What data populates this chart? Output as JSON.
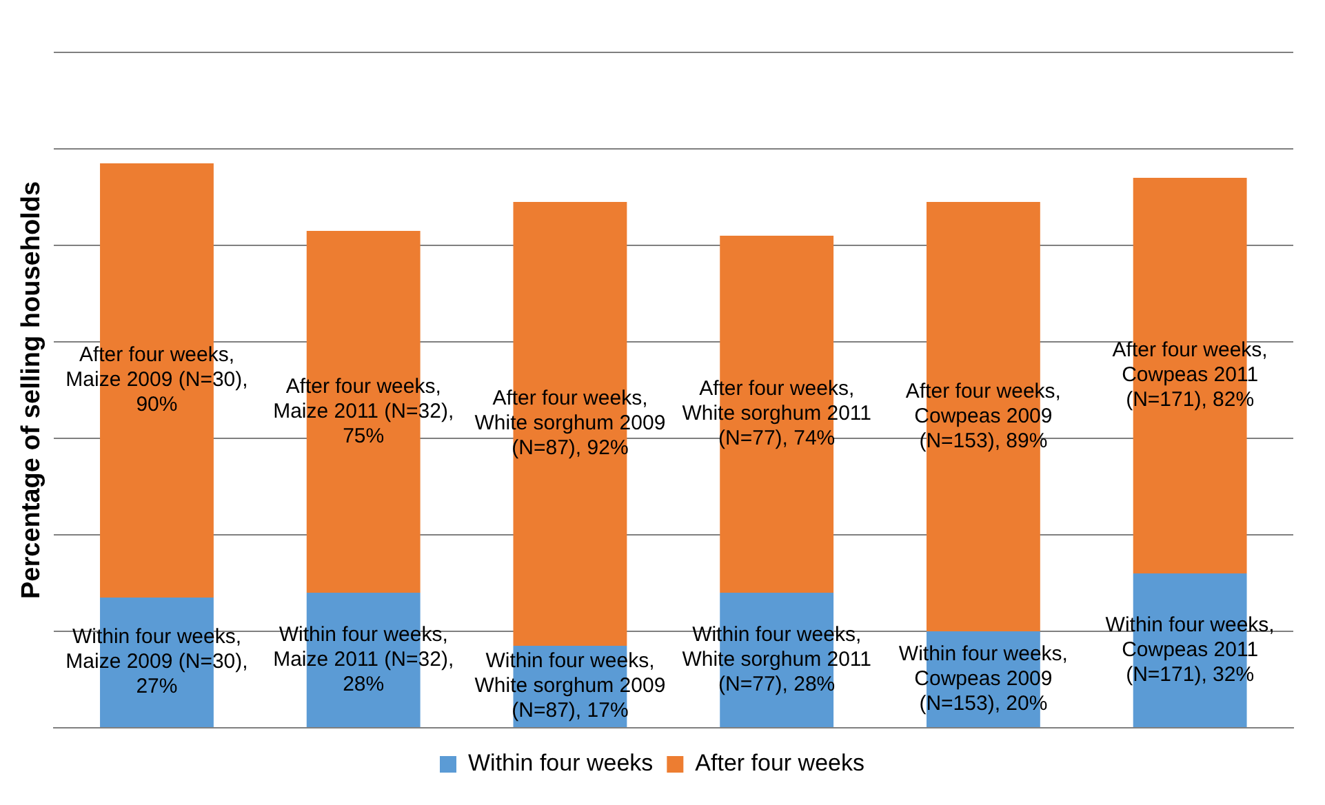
{
  "chart_data": {
    "type": "bar",
    "stacked": true,
    "ylabel": "Percentage of selling households",
    "categories": [
      null,
      null,
      null,
      null,
      null,
      null
    ],
    "ylim": [
      0,
      140
    ],
    "tick_labels": false,
    "grid": "y",
    "legend": "bottom",
    "series": [
      {
        "name": "Within four weeks",
        "color": "#5b9bd5",
        "values": [
          27,
          28,
          17,
          28,
          20,
          32
        ],
        "value_labels": [
          "Within four weeks, Maize 2009 (N=30), 27%",
          "Within four weeks, Maize 2011 (N=32), 28%",
          "Within four weeks, White sorghum 2009 (N=87), 17%",
          "Within four weeks, White sorghum 2011 (N=77), 28%",
          "Within four weeks, Cowpeas 2009 (N=153), 20%",
          "Within four weeks, Cowpeas 2011 (N=171), 32%"
        ]
      },
      {
        "name": "After four weeks",
        "color": "#ed7d31",
        "values": [
          90,
          75,
          92,
          74,
          89,
          82
        ],
        "value_labels": [
          "After four weeks, Maize 2009 (N=30), 90%",
          "After four weeks, Maize 2011 (N=32), 75%",
          "After four weeks, White sorghum 2009 (N=87), 92%",
          "After four weeks, White sorghum 2011 (N=77), 74%",
          "After four weeks, Cowpeas 2009 (N=153), 89%",
          "After four weeks, Cowpeas 2011 (N=171), 82%"
        ]
      }
    ]
  }
}
